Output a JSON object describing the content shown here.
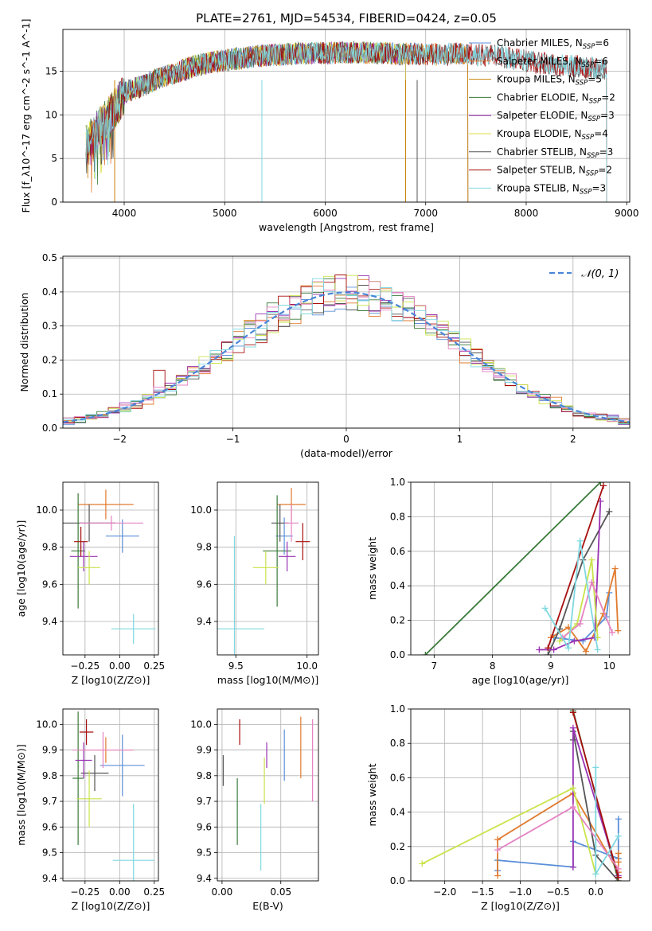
{
  "figure": {
    "title": "PLATE=2761, MJD=54534, FIBERID=0424, z=0.05"
  },
  "colors": {
    "Chabrier MILES": "#4c72b0",
    "Salpeter MILES": "#4c72b0",
    "Kroupa MILES": "#c8820a",
    "Chabrier ELODIE": "#3a7a3a",
    "Salpeter ELODIE": "#9a32b4",
    "Kroupa ELODIE": "#dede46",
    "Chabrier STELIB": "#444444",
    "Salpeter STELIB": "#a80e0e",
    "Kroupa STELIB": "#7fd8e0",
    "normal_fit": "#4a86d8"
  },
  "chart_data": [
    {
      "type": "line",
      "panel": "spectrum",
      "xlabel": "wavelength [Angstrom, rest frame]",
      "ylabel": "Flux [f_λ10^-17 erg cm^-2 s^-1 A^-1]",
      "xlim": [
        3390,
        9030
      ],
      "ylim": [
        0,
        19.8
      ],
      "xticks": [
        4000,
        5000,
        6000,
        7000,
        8000,
        9000
      ],
      "yticks": [
        0,
        5,
        10,
        15
      ],
      "legend": "top-right",
      "series": [
        {
          "name": "Chabrier MILES",
          "label_main": "Chabrier MILES, N",
          "label_sub": "SSP",
          "label_tail": "=6",
          "x_end": 7420,
          "color": "#5a8fd8"
        },
        {
          "name": "Salpeter MILES",
          "label_main": "Salpeter MILES, N",
          "label_sub": "SSP",
          "label_tail": "=6",
          "x_end": 7420,
          "color": "#e07a2e"
        },
        {
          "name": "Kroupa MILES",
          "label_main": "Kroupa MILES, N",
          "label_sub": "SSP",
          "label_tail": "=5",
          "x_end": 7420,
          "color": "#c8820a"
        },
        {
          "name": "Chabrier ELODIE",
          "label_main": "Chabrier ELODIE, N",
          "label_sub": "SSP",
          "label_tail": "=2",
          "x_end": 6800,
          "color": "#3a7a3a"
        },
        {
          "name": "Salpeter ELODIE",
          "label_main": "Salpeter ELODIE, N",
          "label_sub": "SSP",
          "label_tail": "=3",
          "x_end": 6800,
          "color": "#9a32b4"
        },
        {
          "name": "Kroupa ELODIE",
          "label_main": "Kroupa ELODIE, N",
          "label_sub": "SSP",
          "label_tail": "=4",
          "x_end": 6800,
          "color": "#dede46"
        },
        {
          "name": "Chabrier STELIB",
          "label_main": "Chabrier STELIB, N",
          "label_sub": "SSP",
          "label_tail": "=3",
          "x_end": 8800,
          "color": "#555555"
        },
        {
          "name": "Salpeter STELIB",
          "label_main": "Salpeter STELIB, N",
          "label_sub": "SSP",
          "label_tail": "=2",
          "x_end": 8800,
          "color": "#a80e0e"
        },
        {
          "name": "Kroupa STELIB",
          "label_main": "Kroupa STELIB, N",
          "label_sub": "SSP",
          "label_tail": "=3",
          "x_end": 8800,
          "color": "#7fd8e0"
        }
      ],
      "continuum": {
        "x": [
          3620,
          3700,
          3800,
          3880,
          3950,
          4000,
          4100,
          4200,
          4300,
          4500,
          4700,
          4900,
          5100,
          5300,
          5500,
          5700,
          5900,
          6100,
          6300,
          6500,
          6700,
          6900,
          7100,
          7300,
          7500,
          7700,
          7900,
          8100,
          8300,
          8500,
          8700,
          8800
        ],
        "y": [
          6.5,
          7.8,
          9.2,
          10.3,
          11.5,
          12.5,
          13.0,
          13.4,
          14.0,
          14.8,
          15.6,
          16.1,
          16.4,
          16.7,
          16.9,
          17.0,
          17.1,
          17.1,
          17.2,
          17.1,
          17.0,
          17.0,
          16.9,
          17.0,
          16.9,
          16.8,
          16.4,
          16.0,
          15.7,
          15.6,
          15.3,
          15.2
        ]
      }
    },
    {
      "type": "line",
      "panel": "residual histogram",
      "xlabel": "(data-model)/error",
      "ylabel": "Normed distribution",
      "xlim": [
        -2.5,
        2.5
      ],
      "ylim": [
        0,
        0.505
      ],
      "xticks": [
        -2,
        -1,
        0,
        1,
        2
      ],
      "yticks": [
        0.0,
        0.1,
        0.2,
        0.3,
        0.4,
        0.5
      ],
      "legend": "top-right",
      "normal_label": "𝒩(0, 1)",
      "bin_width": 0.1,
      "bin_start": -2.5
    },
    {
      "type": "scatter",
      "panel": "age vs Z",
      "xlabel": "Z [log10(Z/Z⊙)]",
      "ylabel": "age [log10(age/yr)]",
      "xlim": [
        -0.41,
        0.28
      ],
      "ylim": [
        9.22,
        10.15
      ],
      "xticks": [
        -0.25,
        0.0,
        0.25
      ],
      "ytick_labels": [
        "9.4",
        "9.6",
        "9.8",
        "10.0"
      ],
      "yticks": [
        9.4,
        9.6,
        9.8,
        10.0
      ],
      "points": [
        {
          "x": 0.02,
          "y": 9.86,
          "xerr": 0.12,
          "yerr": 0.09,
          "color": "#5a8fd8"
        },
        {
          "x": -0.1,
          "y": 10.03,
          "xerr": 0.2,
          "yerr": 0.08,
          "color": "#e07a2e"
        },
        {
          "x": -0.22,
          "y": 9.93,
          "xerr": 0.19,
          "yerr": 0.1,
          "color": "#555555"
        },
        {
          "x": -0.3,
          "y": 9.78,
          "xerr": 0.05,
          "yerr": 0.31,
          "color": "#3a7a3a"
        },
        {
          "x": -0.26,
          "y": 9.75,
          "xerr": 0.1,
          "yerr": 0.08,
          "color": "#9a32b4"
        },
        {
          "x": -0.22,
          "y": 9.69,
          "xerr": 0.08,
          "yerr": 0.09,
          "color": "#c9e34a"
        },
        {
          "x": -0.28,
          "y": 9.83,
          "xerr": 0.05,
          "yerr": 0.08,
          "color": "#a80e0e"
        },
        {
          "x": -0.06,
          "y": 9.93,
          "xerr": 0.23,
          "yerr": 0.04,
          "color": "#e583c2"
        },
        {
          "x": 0.1,
          "y": 9.36,
          "xerr": 0.16,
          "yerr": 0.08,
          "color": "#7fd8e0"
        }
      ]
    },
    {
      "type": "scatter",
      "panel": "age vs mass",
      "xlabel": "mass [log10(M/M⊙)]",
      "xlim": [
        9.37,
        10.08
      ],
      "ylim": [
        9.22,
        10.15
      ],
      "xticks": [
        9.5,
        10.0
      ],
      "yticks": [
        9.4,
        9.6,
        9.8,
        10.0
      ],
      "points": [
        {
          "x": 9.84,
          "y": 9.86,
          "xerr": 0.06,
          "yerr": 0.1,
          "color": "#5a8fd8"
        },
        {
          "x": 9.89,
          "y": 10.03,
          "xerr": 0.1,
          "yerr": 0.09,
          "color": "#e07a2e"
        },
        {
          "x": 9.81,
          "y": 9.93,
          "xerr": 0.06,
          "yerr": 0.1,
          "color": "#555555"
        },
        {
          "x": 9.79,
          "y": 9.78,
          "xerr": 0.1,
          "yerr": 0.3,
          "color": "#3a7a3a"
        },
        {
          "x": 9.86,
          "y": 9.75,
          "xerr": 0.06,
          "yerr": 0.08,
          "color": "#9a32b4"
        },
        {
          "x": 9.71,
          "y": 9.69,
          "xerr": 0.09,
          "yerr": 0.09,
          "color": "#c9e34a"
        },
        {
          "x": 9.97,
          "y": 9.83,
          "xerr": 0.05,
          "yerr": 0.1,
          "color": "#a80e0e"
        },
        {
          "x": 9.89,
          "y": 9.93,
          "xerr": 0.05,
          "yerr": 0.1,
          "color": "#e583c2"
        },
        {
          "x": 9.49,
          "y": 9.36,
          "xerr": 0.21,
          "yerr": 0.5,
          "color": "#7fd8e0"
        }
      ]
    },
    {
      "type": "line",
      "panel": "mass weight vs age",
      "xlabel": "age [log10(age/yr)]",
      "ylabel": "mass weight",
      "xlim": [
        6.6,
        10.35
      ],
      "ylim": [
        0,
        1.0
      ],
      "xticks": [
        7,
        8,
        9,
        10
      ],
      "yticks": [
        0.0,
        0.2,
        0.4,
        0.6,
        0.8,
        1.0
      ],
      "series": [
        {
          "color": "#5a8fd8",
          "x": [
            9.05,
            9.55,
            9.95,
            10.0
          ],
          "y": [
            0.1,
            0.08,
            0.22,
            0.36
          ]
        },
        {
          "color": "#e07a2e",
          "x": [
            9.0,
            9.3,
            9.6,
            9.9,
            10.1,
            10.15
          ],
          "y": [
            0.1,
            0.16,
            0.02,
            0.24,
            0.5,
            0.14
          ]
        },
        {
          "color": "#555555",
          "x": [
            8.95,
            9.15,
            9.55,
            10.0
          ],
          "y": [
            0.0,
            0.15,
            0.55,
            0.83
          ]
        },
        {
          "color": "#3a7a3a",
          "x": [
            6.85,
            9.85
          ],
          "y": [
            0.0,
            1.0
          ]
        },
        {
          "color": "#9a32b4",
          "x": [
            8.8,
            9.05,
            9.4,
            9.75,
            9.85
          ],
          "y": [
            0.03,
            0.03,
            0.08,
            0.1,
            0.89
          ]
        },
        {
          "color": "#c9e34a",
          "x": [
            9.15,
            9.45,
            9.7,
            9.8
          ],
          "y": [
            0.08,
            0.18,
            0.55,
            0.1
          ]
        },
        {
          "color": "#a80e0e",
          "x": [
            8.95,
            9.9
          ],
          "y": [
            0.04,
            0.98
          ]
        },
        {
          "color": "#e583c2",
          "x": [
            9.2,
            9.5,
            9.7,
            10.05
          ],
          "y": [
            0.1,
            0.18,
            0.42,
            0.13
          ]
        },
        {
          "color": "#7fd8e0",
          "x": [
            8.9,
            9.3,
            9.5,
            9.8
          ],
          "y": [
            0.27,
            0.04,
            0.66,
            0.03
          ]
        }
      ]
    },
    {
      "type": "scatter",
      "panel": "mass vs Z",
      "xlabel": "Z [log10(Z/Z⊙)]",
      "ylabel": "mass [log10(M/M⊙)]",
      "xlim": [
        -0.41,
        0.28
      ],
      "ylim": [
        9.39,
        10.06
      ],
      "xticks": [
        -0.25,
        0.0,
        0.25
      ],
      "yticks": [
        9.4,
        9.5,
        9.6,
        9.7,
        9.8,
        9.9,
        10.0
      ],
      "points": [
        {
          "x": 0.02,
          "y": 9.84,
          "xerr": 0.16,
          "yerr": 0.12,
          "color": "#5a8fd8"
        },
        {
          "x": -0.1,
          "y": 9.9,
          "xerr": 0.2,
          "yerr": 0.05,
          "color": "#e07a2e"
        },
        {
          "x": -0.18,
          "y": 9.81,
          "xerr": 0.1,
          "yerr": 0.07,
          "color": "#555555"
        },
        {
          "x": -0.3,
          "y": 9.79,
          "xerr": 0.04,
          "yerr": 0.26,
          "color": "#3a7a3a"
        },
        {
          "x": -0.26,
          "y": 9.86,
          "xerr": 0.06,
          "yerr": 0.07,
          "color": "#9a32b4"
        },
        {
          "x": -0.22,
          "y": 9.71,
          "xerr": 0.09,
          "yerr": 0.11,
          "color": "#c9e34a"
        },
        {
          "x": -0.24,
          "y": 9.97,
          "xerr": 0.05,
          "yerr": 0.05,
          "color": "#a80e0e"
        },
        {
          "x": -0.12,
          "y": 9.9,
          "xerr": 0.22,
          "yerr": 0.07,
          "color": "#e583c2"
        },
        {
          "x": 0.1,
          "y": 9.47,
          "xerr": 0.15,
          "yerr": 0.22,
          "color": "#7fd8e0"
        }
      ]
    },
    {
      "type": "scatter",
      "panel": "mass vs E(B-V)",
      "xlabel": "E(B-V)",
      "xlim": [
        -0.004,
        0.082
      ],
      "ylim": [
        9.39,
        10.06
      ],
      "xticks": [
        0.0,
        0.05
      ],
      "yticks": [
        9.4,
        9.5,
        9.6,
        9.7,
        9.8,
        9.9,
        10.0
      ],
      "points": [
        {
          "x": 0.001,
          "y": 9.82,
          "yerr": 0.06,
          "color": "#555555"
        },
        {
          "x": 0.015,
          "y": 9.97,
          "yerr": 0.05,
          "color": "#a80e0e"
        },
        {
          "x": 0.013,
          "y": 9.66,
          "yerr": 0.13,
          "color": "#3a7a3a"
        },
        {
          "x": 0.038,
          "y": 9.88,
          "yerr": 0.05,
          "color": "#9a32b4"
        },
        {
          "x": 0.036,
          "y": 9.78,
          "yerr": 0.09,
          "color": "#c9e34a"
        },
        {
          "x": 0.033,
          "y": 9.56,
          "yerr": 0.13,
          "color": "#7fd8e0"
        },
        {
          "x": 0.053,
          "y": 9.88,
          "yerr": 0.1,
          "color": "#5a8fd8"
        },
        {
          "x": 0.067,
          "y": 9.91,
          "yerr": 0.12,
          "color": "#e07a2e"
        },
        {
          "x": 0.077,
          "y": 9.86,
          "yerr": 0.16,
          "color": "#e583c2"
        }
      ]
    },
    {
      "type": "line",
      "panel": "mass weight vs Z",
      "xlabel": "Z [log10(Z/Z⊙)]",
      "ylabel": "mass weight",
      "xlim": [
        -2.45,
        0.45
      ],
      "ylim": [
        0,
        1.0
      ],
      "xticks": [
        -2.0,
        -1.5,
        -1.0,
        -0.5,
        0.0
      ],
      "yticks": [
        0.0,
        0.2,
        0.4,
        0.6,
        0.8,
        1.0
      ],
      "series": [
        {
          "color": "#5a8fd8",
          "x": [
            -1.3,
            -1.3,
            -0.3,
            -0.3,
            0.3,
            0.3
          ],
          "y": [
            0.06,
            0.12,
            0.08,
            0.23,
            0.13,
            0.36
          ]
        },
        {
          "color": "#e07a2e",
          "x": [
            -1.3,
            -1.3,
            -0.3,
            0.3,
            0.3,
            0.3
          ],
          "y": [
            0.03,
            0.24,
            0.51,
            0.05,
            0.11,
            0.16
          ]
        },
        {
          "color": "#555555",
          "x": [
            -0.3,
            -0.3,
            0.0,
            0.3
          ],
          "y": [
            0.82,
            0.87,
            0.15,
            0.0
          ]
        },
        {
          "color": "#3a7a3a",
          "x": [
            -0.3,
            0.3
          ],
          "y": [
            0.99,
            0.0
          ]
        },
        {
          "color": "#9a32b4",
          "x": [
            -0.3,
            -0.3,
            0.3
          ],
          "y": [
            0.08,
            0.89,
            0.03
          ]
        },
        {
          "color": "#c9e34a",
          "x": [
            -2.3,
            -0.3,
            0.0
          ],
          "y": [
            0.1,
            0.54,
            0.04
          ]
        },
        {
          "color": "#a80e0e",
          "x": [
            -0.3,
            0.3
          ],
          "y": [
            0.98,
            0.02
          ]
        },
        {
          "color": "#e583c2",
          "x": [
            -1.3,
            -0.3,
            0.3
          ],
          "y": [
            0.18,
            0.43,
            0.07
          ]
        },
        {
          "color": "#7fd8e0",
          "x": [
            0.0,
            0.0,
            0.3
          ],
          "y": [
            0.66,
            0.04,
            0.26
          ]
        }
      ]
    }
  ]
}
